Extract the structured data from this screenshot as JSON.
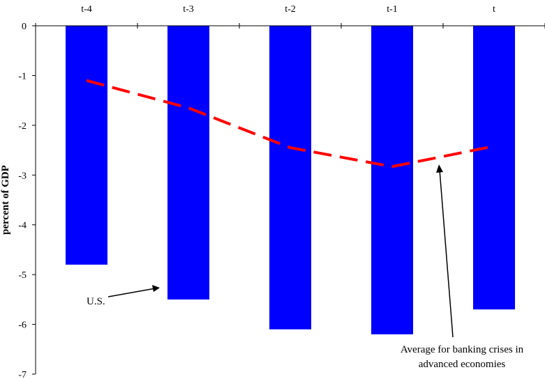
{
  "chart_data": {
    "type": "bar",
    "title": "",
    "xlabel": "",
    "ylabel": "percent of GDP",
    "categories": [
      "t-4",
      "t-3",
      "t-2",
      "t-1",
      "t"
    ],
    "ylim": [
      -7,
      0
    ],
    "yticks": [
      0,
      -1,
      -2,
      -3,
      -4,
      -5,
      -6,
      -7
    ],
    "x_axis_position": "top",
    "grid": false,
    "legend": "none",
    "series": [
      {
        "type": "bar",
        "values": [
          -4.8,
          -5.5,
          -6.1,
          -6.2,
          -5.7
        ],
        "color": "#0000ff"
      },
      {
        "type": "line",
        "style": "dashed",
        "values": [
          -1.1,
          -1.65,
          -2.45,
          -2.83,
          -2.42
        ],
        "color": "#ff0000"
      }
    ],
    "annotations": [
      {
        "text": "U.S.",
        "points_to": "bars"
      },
      {
        "lines": [
          "Average for banking crises in",
          "advanced economies"
        ],
        "points_to": "dashed line"
      }
    ]
  }
}
